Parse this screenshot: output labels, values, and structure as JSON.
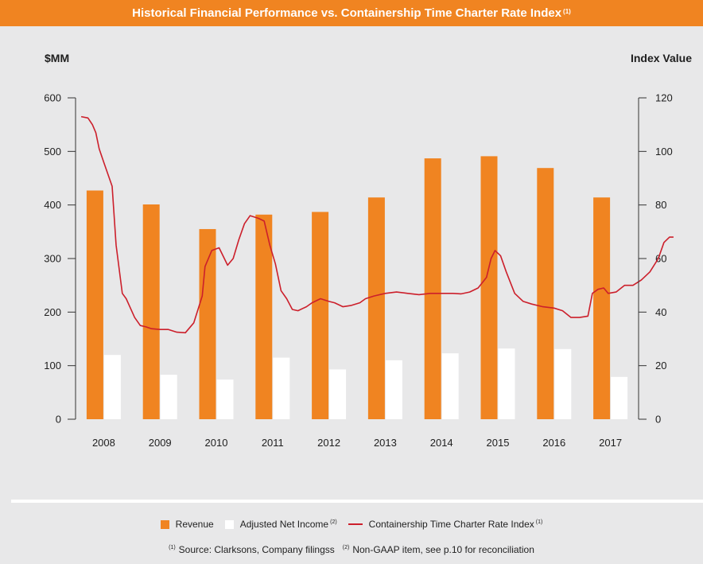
{
  "title": {
    "text": "Historical Financial Performance vs. Containership Time Charter Rate Index",
    "superscript": "(1)"
  },
  "colors": {
    "revenue": "#f08421",
    "net_income": "#ffffff",
    "index_line": "#cc1f2b",
    "background": "#e8e8e9",
    "title_bar": "#f08421"
  },
  "chart_data": {
    "type": "bar",
    "categories": [
      "2008",
      "2009",
      "2010",
      "2011",
      "2012",
      "2013",
      "2014",
      "2015",
      "2016",
      "2017"
    ],
    "series": [
      {
        "name": "Revenue",
        "values": [
          427,
          401,
          355,
          382,
          387,
          414,
          487,
          491,
          469,
          414
        ]
      },
      {
        "name": "Adjusted Net Income",
        "values": [
          120,
          83,
          74,
          115,
          93,
          110,
          123,
          132,
          131,
          79
        ]
      }
    ],
    "line_series": {
      "name": "Containership Time Charter Rate Index",
      "axis": "right",
      "points": [
        [
          2007.6,
          113
        ],
        [
          2007.72,
          112.5
        ],
        [
          2007.8,
          110
        ],
        [
          2007.86,
          107
        ],
        [
          2007.92,
          101
        ],
        [
          2008.0,
          96
        ],
        [
          2008.15,
          87
        ],
        [
          2008.22,
          65
        ],
        [
          2008.33,
          47
        ],
        [
          2008.4,
          45
        ],
        [
          2008.55,
          38
        ],
        [
          2008.65,
          35
        ],
        [
          2008.75,
          34.5
        ],
        [
          2008.85,
          33.8
        ],
        [
          2009.0,
          33.5
        ],
        [
          2009.15,
          33.5
        ],
        [
          2009.3,
          32.5
        ],
        [
          2009.45,
          32.3
        ],
        [
          2009.6,
          36
        ],
        [
          2009.75,
          46
        ],
        [
          2009.8,
          57
        ],
        [
          2009.92,
          63
        ],
        [
          2010.05,
          64
        ],
        [
          2010.2,
          57.5
        ],
        [
          2010.3,
          60
        ],
        [
          2010.4,
          67
        ],
        [
          2010.5,
          73
        ],
        [
          2010.6,
          76
        ],
        [
          2010.75,
          75
        ],
        [
          2010.85,
          74
        ],
        [
          2010.95,
          65
        ],
        [
          2011.05,
          58
        ],
        [
          2011.15,
          48
        ],
        [
          2011.25,
          45
        ],
        [
          2011.35,
          41
        ],
        [
          2011.45,
          40.5
        ],
        [
          2011.6,
          42
        ],
        [
          2011.7,
          43.5
        ],
        [
          2011.85,
          45
        ],
        [
          2012.0,
          44
        ],
        [
          2012.1,
          43.5
        ],
        [
          2012.25,
          42
        ],
        [
          2012.4,
          42.5
        ],
        [
          2012.55,
          43.5
        ],
        [
          2012.65,
          45
        ],
        [
          2012.8,
          46
        ],
        [
          2013.0,
          47
        ],
        [
          2013.2,
          47.5
        ],
        [
          2013.4,
          47
        ],
        [
          2013.6,
          46.5
        ],
        [
          2013.8,
          47
        ],
        [
          2014.0,
          47
        ],
        [
          2014.2,
          47
        ],
        [
          2014.35,
          46.8
        ],
        [
          2014.5,
          47.5
        ],
        [
          2014.65,
          49
        ],
        [
          2014.8,
          53
        ],
        [
          2014.88,
          60
        ],
        [
          2014.95,
          63
        ],
        [
          2015.05,
          61
        ],
        [
          2015.15,
          55
        ],
        [
          2015.3,
          47
        ],
        [
          2015.45,
          44
        ],
        [
          2015.6,
          43
        ],
        [
          2015.8,
          42
        ],
        [
          2016.0,
          41.5
        ],
        [
          2016.15,
          40.5
        ],
        [
          2016.3,
          38
        ],
        [
          2016.45,
          38
        ],
        [
          2016.6,
          38.5
        ],
        [
          2016.68,
          47
        ],
        [
          2016.78,
          48.5
        ],
        [
          2016.88,
          49
        ],
        [
          2016.96,
          47
        ],
        [
          2017.1,
          47.5
        ],
        [
          2017.25,
          50
        ],
        [
          2017.4,
          50
        ],
        [
          2017.55,
          52
        ],
        [
          2017.7,
          55
        ],
        [
          2017.85,
          60
        ],
        [
          2017.95,
          66
        ],
        [
          2018.05,
          68
        ],
        [
          2018.12,
          68
        ]
      ]
    },
    "y_left": {
      "label": "$MM",
      "ticks": [
        0,
        100,
        200,
        300,
        400,
        500,
        600
      ],
      "range": [
        0,
        600
      ]
    },
    "y_right": {
      "label": "Index Value",
      "ticks": [
        0,
        20,
        40,
        60,
        80,
        100,
        120
      ],
      "range": [
        0,
        120
      ]
    },
    "grid": false,
    "legend_position": "bottom"
  },
  "legend": {
    "revenue": "Revenue",
    "net_income": "Adjusted Net Income",
    "net_income_sup": "(2)",
    "index": "Containership Time Charter Rate Index",
    "index_sup": "(1)"
  },
  "footnote": {
    "sup1": "(1)",
    "text1": "Source: Clarksons, Company filingss",
    "sup2": "(2)",
    "text2": "Non-GAAP item, see p.10 for reconciliation"
  }
}
